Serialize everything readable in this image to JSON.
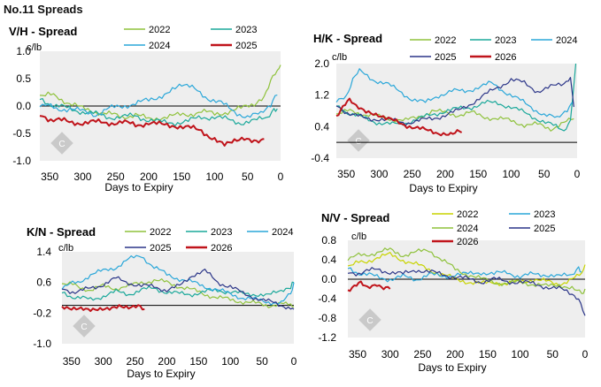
{
  "page_title": "No.11 Spreads",
  "colors": {
    "s2022": "#8fc23c",
    "s2023": "#1aa89a",
    "s2024": "#2aa7d9",
    "s2025": "#2b3588",
    "s2026": "#c0141b",
    "plot_bg": "#eeeeee",
    "zero_line": "#000000"
  },
  "chart_data": [
    {
      "id": "vh",
      "type": "line",
      "title": "V/H - Spread",
      "ylabel": "c/lb",
      "xlabel": "Days to Expiry",
      "xlim": [
        365,
        0
      ],
      "ylim": [
        -1.0,
        1.0
      ],
      "xticks": [
        350,
        300,
        250,
        200,
        150,
        100,
        50,
        0
      ],
      "yticks": [
        "1.0",
        "0.5",
        "0.0",
        "-0.5",
        "-1.0"
      ],
      "series": [
        {
          "name": "2022",
          "color": "#8fc23c",
          "x": [
            365,
            340,
            320,
            300,
            280,
            260,
            240,
            220,
            200,
            180,
            160,
            140,
            120,
            100,
            80,
            60,
            40,
            25,
            15,
            5,
            0
          ],
          "y": [
            0.22,
            0.18,
            0.05,
            -0.05,
            -0.1,
            -0.15,
            -0.2,
            -0.15,
            -0.25,
            -0.2,
            -0.18,
            -0.15,
            -0.1,
            -0.15,
            -0.1,
            -0.05,
            0.05,
            0.2,
            0.45,
            0.62,
            0.75
          ]
        },
        {
          "name": "2023",
          "color": "#1aa89a",
          "x": [
            365,
            340,
            320,
            300,
            280,
            260,
            240,
            220,
            200,
            180,
            160,
            140,
            120,
            100,
            80,
            60,
            40,
            20,
            10,
            5
          ],
          "y": [
            0.1,
            0.0,
            -0.05,
            -0.1,
            -0.15,
            -0.2,
            -0.2,
            -0.18,
            -0.25,
            -0.3,
            -0.3,
            -0.28,
            -0.2,
            -0.2,
            -0.25,
            -0.3,
            -0.28,
            -0.2,
            -0.1,
            -0.05
          ]
        },
        {
          "name": "2024",
          "color": "#2aa7d9",
          "x": [
            365,
            340,
            320,
            300,
            280,
            260,
            240,
            220,
            200,
            180,
            160,
            150,
            130,
            110,
            90,
            70,
            50,
            30,
            15,
            5
          ],
          "y": [
            0.05,
            -0.05,
            -0.05,
            -0.1,
            -0.15,
            -0.05,
            0.0,
            0.05,
            0.1,
            0.2,
            0.3,
            0.4,
            0.3,
            0.15,
            0.05,
            -0.1,
            -0.2,
            -0.15,
            0.0,
            0.2
          ]
        },
        {
          "name": "2025",
          "color": "#c0141b",
          "x": [
            365,
            340,
            320,
            300,
            280,
            260,
            240,
            220,
            200,
            180,
            160,
            140,
            120,
            100,
            85,
            70,
            55,
            40,
            30,
            25
          ],
          "y": [
            -0.2,
            -0.25,
            -0.3,
            -0.3,
            -0.3,
            -0.3,
            -0.3,
            -0.35,
            -0.3,
            -0.35,
            -0.35,
            -0.4,
            -0.45,
            -0.6,
            -0.7,
            -0.65,
            -0.62,
            -0.68,
            -0.62,
            -0.6
          ]
        }
      ]
    },
    {
      "id": "hk",
      "type": "line",
      "title": "H/K - Spread",
      "ylabel": "c/lb",
      "xlabel": "Days to Expiry",
      "xlim": [
        365,
        0
      ],
      "ylim": [
        -0.4,
        2.0
      ],
      "xticks": [
        350,
        300,
        250,
        200,
        150,
        100,
        50,
        0
      ],
      "yticks": [
        "2.0",
        "1.2",
        "0.4",
        "-0.4"
      ],
      "series": [
        {
          "name": "2022",
          "color": "#8fc23c",
          "x": [
            365,
            340,
            320,
            300,
            280,
            260,
            240,
            220,
            200,
            180,
            160,
            140,
            120,
            100,
            80,
            60,
            40,
            20,
            5
          ],
          "y": [
            0.75,
            0.8,
            0.7,
            0.65,
            0.6,
            0.55,
            0.65,
            0.8,
            0.75,
            0.7,
            0.75,
            0.65,
            0.6,
            0.55,
            0.45,
            0.45,
            0.35,
            0.5,
            0.6
          ]
        },
        {
          "name": "2023",
          "color": "#1aa89a",
          "x": [
            365,
            340,
            320,
            300,
            280,
            260,
            240,
            220,
            200,
            180,
            160,
            140,
            120,
            100,
            80,
            60,
            40,
            20,
            10,
            2
          ],
          "y": [
            0.9,
            0.7,
            0.6,
            0.5,
            0.45,
            0.5,
            0.6,
            0.7,
            0.8,
            0.85,
            0.9,
            1.0,
            1.0,
            0.9,
            0.75,
            0.6,
            0.45,
            0.3,
            0.5,
            2.0
          ]
        },
        {
          "name": "2024",
          "color": "#2aa7d9",
          "x": [
            365,
            350,
            340,
            330,
            310,
            290,
            270,
            250,
            230,
            210,
            190,
            170,
            150,
            130,
            110,
            90,
            70,
            50,
            30,
            15,
            5
          ],
          "y": [
            1.1,
            1.2,
            1.6,
            1.8,
            1.6,
            1.5,
            1.3,
            1.1,
            1.0,
            1.2,
            1.3,
            1.3,
            1.4,
            1.5,
            1.3,
            1.1,
            0.9,
            0.7,
            0.6,
            0.8,
            1.0
          ]
        },
        {
          "name": "2025",
          "color": "#2b3588",
          "x": [
            365,
            340,
            320,
            300,
            280,
            260,
            240,
            220,
            200,
            180,
            160,
            140,
            120,
            100,
            80,
            60,
            40,
            20,
            10,
            5
          ],
          "y": [
            0.9,
            0.7,
            0.6,
            0.6,
            0.55,
            0.5,
            0.55,
            0.6,
            0.7,
            0.8,
            1.0,
            1.2,
            1.4,
            1.6,
            1.5,
            1.3,
            1.4,
            1.5,
            1.6,
            0.9
          ]
        },
        {
          "name": "2026",
          "color": "#c0141b",
          "x": [
            365,
            355,
            345,
            335,
            320,
            305,
            290,
            270,
            250,
            230,
            210,
            195,
            185,
            175
          ],
          "y": [
            0.7,
            0.9,
            1.05,
            0.95,
            0.8,
            0.7,
            0.6,
            0.5,
            0.4,
            0.3,
            0.25,
            0.25,
            0.25,
            0.25
          ]
        }
      ]
    },
    {
      "id": "kn",
      "type": "line",
      "title": "K/N - Spread",
      "ylabel": "c/lb",
      "xlabel": "Days to Expiry",
      "xlim": [
        365,
        0
      ],
      "ylim": [
        -1.0,
        1.4
      ],
      "xticks": [
        350,
        300,
        250,
        200,
        150,
        100,
        50,
        0
      ],
      "yticks": [
        "1.4",
        "0.6",
        "-0.2",
        "-1.0"
      ],
      "series": [
        {
          "name": "2022",
          "color": "#8fc23c",
          "x": [
            365,
            340,
            320,
            300,
            280,
            260,
            240,
            220,
            200,
            180,
            160,
            140,
            120,
            100,
            80,
            60,
            40,
            20,
            5,
            0
          ],
          "y": [
            0.6,
            0.5,
            0.4,
            0.5,
            0.45,
            0.5,
            0.6,
            0.65,
            0.6,
            0.5,
            0.4,
            0.3,
            0.2,
            0.15,
            0.1,
            0.05,
            0.0,
            0.05,
            0.0,
            -0.05
          ]
        },
        {
          "name": "2023",
          "color": "#1aa89a",
          "x": [
            365,
            340,
            320,
            300,
            280,
            260,
            240,
            220,
            200,
            180,
            160,
            140,
            120,
            100,
            80,
            60,
            40,
            20,
            5,
            0
          ],
          "y": [
            0.3,
            0.2,
            0.15,
            0.25,
            0.35,
            0.3,
            0.4,
            0.45,
            0.35,
            0.3,
            0.3,
            0.35,
            0.4,
            0.35,
            0.3,
            0.3,
            0.25,
            0.4,
            0.5,
            0.6
          ]
        },
        {
          "name": "2024",
          "color": "#2aa7d9",
          "x": [
            365,
            340,
            320,
            300,
            280,
            260,
            240,
            220,
            200,
            180,
            160,
            140,
            120,
            100,
            80,
            60,
            40,
            20,
            5,
            0
          ],
          "y": [
            0.5,
            0.6,
            0.8,
            0.9,
            1.0,
            1.2,
            1.3,
            1.0,
            0.8,
            0.7,
            0.6,
            0.5,
            0.4,
            0.3,
            0.2,
            0.15,
            0.1,
            0.05,
            0.3,
            0.6
          ]
        },
        {
          "name": "2025",
          "color": "#2b3588",
          "x": [
            365,
            340,
            320,
            300,
            280,
            260,
            240,
            220,
            200,
            180,
            160,
            140,
            120,
            100,
            80,
            60,
            40,
            20,
            5,
            0
          ],
          "y": [
            0.4,
            0.35,
            0.45,
            0.55,
            0.7,
            0.6,
            0.5,
            0.5,
            0.4,
            0.5,
            0.8,
            0.9,
            0.6,
            0.5,
            0.3,
            0.2,
            0.1,
            0.0,
            -0.05,
            -0.1
          ]
        },
        {
          "name": "2026",
          "color": "#c0141b",
          "x": [
            365,
            350,
            335,
            320,
            305,
            290,
            275,
            260,
            245,
            235
          ],
          "y": [
            0.0,
            -0.05,
            -0.05,
            -0.1,
            -0.1,
            -0.1,
            -0.05,
            -0.1,
            -0.05,
            -0.1
          ]
        }
      ]
    },
    {
      "id": "nv",
      "type": "line",
      "title": "N/V - Spread",
      "ylabel": "c/lb",
      "xlabel": "Days to Expiry",
      "xlim": [
        365,
        0
      ],
      "ylim": [
        -1.2,
        0.8
      ],
      "xticks": [
        350,
        300,
        250,
        200,
        150,
        100,
        50,
        0
      ],
      "yticks": [
        "0.8",
        "0.4",
        "0.0",
        "-0.4",
        "-0.8",
        "-1.2"
      ],
      "series": [
        {
          "name": "2022",
          "color": "#c8d400",
          "x": [
            365,
            340,
            320,
            300,
            280,
            260,
            240,
            220,
            200,
            180,
            160,
            140,
            120,
            100,
            80,
            60,
            40,
            20,
            5,
            0
          ],
          "y": [
            0.3,
            0.35,
            0.45,
            0.5,
            0.4,
            0.3,
            0.2,
            0.1,
            0.0,
            -0.05,
            -0.1,
            -0.05,
            -0.1,
            -0.05,
            0.0,
            -0.05,
            -0.1,
            0.0,
            0.1,
            0.3
          ]
        },
        {
          "name": "2023",
          "color": "#2aa7d9",
          "x": [
            365,
            340,
            320,
            300,
            280,
            260,
            240,
            220,
            200,
            180,
            160,
            140,
            120,
            100,
            80,
            60,
            40,
            20,
            10,
            5
          ],
          "y": [
            0.2,
            0.1,
            0.05,
            0.0,
            0.05,
            0.0,
            0.1,
            0.05,
            0.1,
            0.1,
            0.15,
            0.1,
            0.15,
            0.05,
            0.1,
            0.1,
            0.05,
            0.1,
            0.2,
            0.15
          ]
        },
        {
          "name": "2024",
          "color": "#8fc23c",
          "x": [
            365,
            340,
            320,
            300,
            280,
            260,
            240,
            220,
            200,
            180,
            160,
            140,
            120,
            100,
            80,
            60,
            40,
            20,
            5,
            0
          ],
          "y": [
            0.45,
            0.5,
            0.55,
            0.6,
            0.5,
            0.55,
            0.6,
            0.4,
            0.2,
            0.1,
            0.0,
            -0.05,
            -0.1,
            -0.05,
            -0.1,
            -0.15,
            -0.1,
            -0.2,
            -0.3,
            -0.2
          ]
        },
        {
          "name": "2025",
          "color": "#2b3588",
          "x": [
            365,
            340,
            320,
            300,
            280,
            260,
            240,
            220,
            200,
            180,
            160,
            140,
            120,
            100,
            80,
            60,
            40,
            20,
            10,
            0
          ],
          "y": [
            0.1,
            0.15,
            0.2,
            0.15,
            0.1,
            0.2,
            0.15,
            0.1,
            0.05,
            0.0,
            -0.05,
            0.0,
            -0.05,
            -0.05,
            -0.1,
            -0.15,
            -0.2,
            -0.3,
            -0.45,
            -0.75
          ]
        },
        {
          "name": "2026",
          "color": "#c0141b",
          "x": [
            365,
            355,
            345,
            335,
            320,
            310,
            300
          ],
          "y": [
            -0.2,
            -0.15,
            -0.1,
            -0.15,
            -0.1,
            -0.15,
            -0.2
          ]
        }
      ]
    }
  ]
}
